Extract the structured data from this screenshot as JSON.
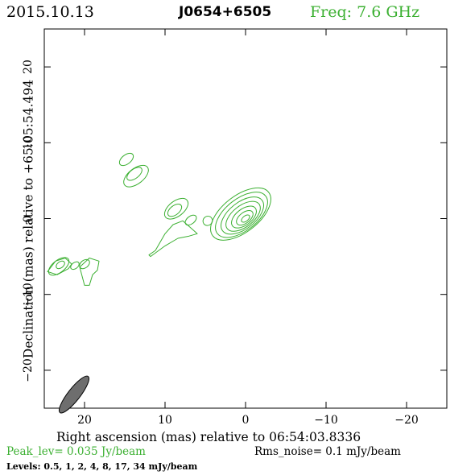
{
  "header": {
    "date": "2015.10.13",
    "source": "J0654+6505",
    "freq": "Freq: 7.6 GHz"
  },
  "axes": {
    "xlabel": "Right ascension (mas) relative to 06:54:03.8336",
    "ylabel": "Declination (mas) relative to +65:05:54.494",
    "xlim": [
      25,
      -25
    ],
    "ylim": [
      -25,
      25
    ],
    "xticks": [
      {
        "v": 20,
        "label": "20"
      },
      {
        "v": 10,
        "label": "10"
      },
      {
        "v": 0,
        "label": "0"
      },
      {
        "v": -10,
        "label": "−10"
      },
      {
        "v": -20,
        "label": "−20"
      }
    ],
    "yticks": [
      {
        "v": 20,
        "label": "20"
      },
      {
        "v": 10,
        "label": "10"
      },
      {
        "v": 0,
        "label": "0"
      },
      {
        "v": -10,
        "label": "−10"
      },
      {
        "v": -20,
        "label": "−20"
      }
    ]
  },
  "footer": {
    "peak": "Peak_lev=  0.035 Jy/beam",
    "rms": "Rms_noise=   0.1 mJy/beam",
    "levels": "Levels: 0.5,    1,    2,    4,    8,   17,   34 mJy/beam"
  },
  "colors": {
    "contour": "#3cb032",
    "beam": "#6e6e6e",
    "frame": "#000000"
  },
  "chart_data": {
    "type": "contour",
    "beam": {
      "ra": 21.3,
      "dec": -23.2,
      "major_mas": 3.0,
      "minor_mas": 1.0
    },
    "core_contours": [
      {
        "ra": 0.0,
        "dec": 0.0,
        "a": 0.6,
        "b": 0.35
      },
      {
        "ra": 0.1,
        "dec": 0.1,
        "a": 1.2,
        "b": 0.7
      },
      {
        "ra": 0.2,
        "dec": 0.2,
        "a": 1.8,
        "b": 1.05
      },
      {
        "ra": 0.3,
        "dec": 0.3,
        "a": 2.5,
        "b": 1.4
      },
      {
        "ra": 0.4,
        "dec": 0.4,
        "a": 3.1,
        "b": 1.75
      },
      {
        "ra": 0.5,
        "dec": 0.5,
        "a": 3.8,
        "b": 2.1
      },
      {
        "ra": 0.6,
        "dec": 0.6,
        "a": 4.4,
        "b": 2.4
      }
    ],
    "knots": [
      {
        "ra": 14.8,
        "dec": 7.8,
        "a": 1.0,
        "b": 0.6
      },
      {
        "ra": 13.8,
        "dec": 5.9,
        "a": 1.1,
        "b": 0.6
      },
      {
        "ra": 13.6,
        "dec": 5.6,
        "a": 1.8,
        "b": 1.0
      },
      {
        "ra": 8.8,
        "dec": 1.1,
        "a": 1.0,
        "b": 0.6
      },
      {
        "ra": 8.6,
        "dec": 1.3,
        "a": 1.7,
        "b": 1.0
      },
      {
        "ra": 6.8,
        "dec": -0.2,
        "a": 0.8,
        "b": 0.5
      },
      {
        "ra": 4.7,
        "dec": -0.3,
        "a": 0.6,
        "b": 0.6
      },
      {
        "ra": 23.0,
        "dec": -6.1,
        "a": 0.6,
        "b": 0.4
      },
      {
        "ra": 23.2,
        "dec": -6.3,
        "a": 1.5,
        "b": 0.8
      },
      {
        "ra": 21.2,
        "dec": -6.2,
        "a": 0.6,
        "b": 0.4
      },
      {
        "ra": 20.0,
        "dec": -6.0,
        "a": 0.7,
        "b": 0.5
      }
    ],
    "jet_paths": [
      [
        [
          12.0,
          -4.8
        ],
        [
          11.2,
          -4.2
        ],
        [
          10.0,
          -2.0
        ],
        [
          9.0,
          -0.8
        ],
        [
          7.8,
          -0.3
        ],
        [
          6.4,
          -1.6
        ],
        [
          6.0,
          -2.0
        ],
        [
          7.0,
          -2.3
        ],
        [
          8.4,
          -2.6
        ],
        [
          10.0,
          -3.6
        ],
        [
          11.8,
          -5.0
        ],
        [
          12.0,
          -4.8
        ]
      ],
      [
        [
          24.6,
          -7.0
        ],
        [
          23.6,
          -5.6
        ],
        [
          22.4,
          -5.2
        ],
        [
          21.6,
          -6.0
        ],
        [
          22.0,
          -6.6
        ],
        [
          23.4,
          -7.4
        ],
        [
          24.6,
          -7.0
        ]
      ],
      [
        [
          20.0,
          -8.8
        ],
        [
          20.6,
          -6.4
        ],
        [
          19.4,
          -5.2
        ],
        [
          18.2,
          -5.6
        ],
        [
          18.4,
          -6.8
        ],
        [
          19.0,
          -7.4
        ],
        [
          19.4,
          -8.8
        ],
        [
          20.0,
          -8.8
        ]
      ]
    ]
  }
}
